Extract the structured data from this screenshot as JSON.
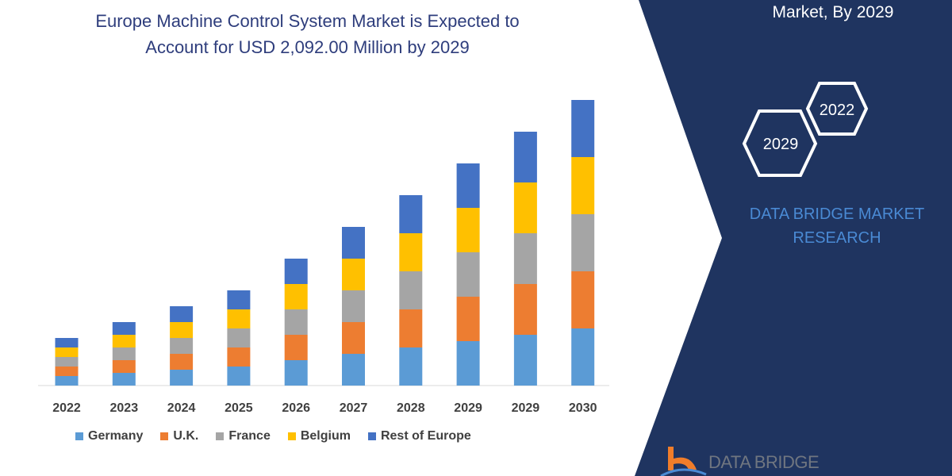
{
  "title": {
    "line1": "Europe Machine Control System Market is Expected to",
    "line2": "Account for USD 2,092.00 Million by 2029"
  },
  "panel": {
    "title": "Market, By 2029",
    "hex_years": [
      "2022",
      "2029"
    ],
    "brand_line1": "DATA BRIDGE MARKET",
    "brand_line2": "RESEARCH",
    "logo_text": "DATA BRIDGE",
    "background": "#1f3460"
  },
  "chart_data": {
    "type": "bar",
    "stacked": true,
    "categories": [
      "2022",
      "2023",
      "2024",
      "2025",
      "2026",
      "2027",
      "2028",
      "2029",
      "2029",
      "2030"
    ],
    "series": [
      {
        "name": "Germany",
        "color": "#5b9bd5",
        "values": [
          12,
          16,
          20,
          24,
          32,
          40,
          48,
          56,
          64,
          72
        ]
      },
      {
        "name": "U.K.",
        "color": "#ed7d31",
        "values": [
          12,
          16,
          20,
          24,
          32,
          40,
          48,
          56,
          64,
          72
        ]
      },
      {
        "name": "France",
        "color": "#a5a5a5",
        "values": [
          12,
          16,
          20,
          24,
          32,
          40,
          48,
          56,
          64,
          72
        ]
      },
      {
        "name": "Belgium",
        "color": "#ffc000",
        "values": [
          12,
          16,
          20,
          24,
          32,
          40,
          48,
          56,
          64,
          72
        ]
      },
      {
        "name": "Rest of Europe",
        "color": "#4472c4",
        "values": [
          12,
          16,
          20,
          24,
          32,
          40,
          48,
          56,
          64,
          72
        ]
      }
    ],
    "ylim": [
      0,
      360
    ],
    "y_axis_shown": false,
    "grid": false,
    "legend_placement": "bottom"
  }
}
